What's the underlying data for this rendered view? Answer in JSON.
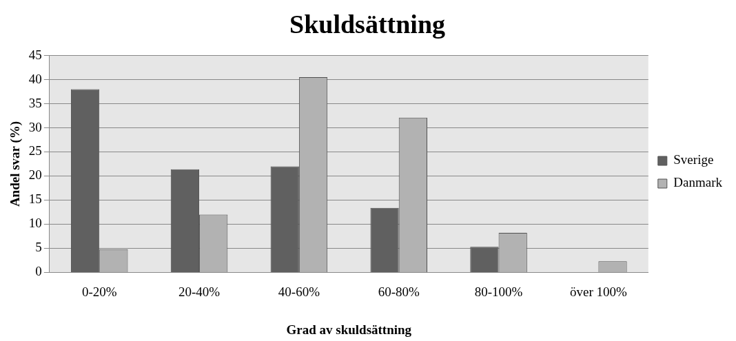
{
  "chart_data": {
    "type": "bar",
    "title": "Skuldsättning",
    "xlabel": "Grad av skuldsättning",
    "ylabel": "Andel svar (%)",
    "categories": [
      "0-20%",
      "20-40%",
      "40-60%",
      "60-80%",
      "80-100%",
      "över 100%"
    ],
    "series": [
      {
        "name": "Sverige",
        "color": "#606060",
        "values": [
          38,
          21.4,
          22,
          13.4,
          5.3,
          0
        ]
      },
      {
        "name": "Danmark",
        "color": "#b2b2b2",
        "values": [
          4.8,
          12,
          40.5,
          32.1,
          8.2,
          2.3
        ]
      }
    ],
    "ylim": [
      0,
      45
    ],
    "yticks": [
      0,
      5,
      10,
      15,
      20,
      25,
      30,
      35,
      40,
      45
    ],
    "grid": "y",
    "legend": "right"
  }
}
